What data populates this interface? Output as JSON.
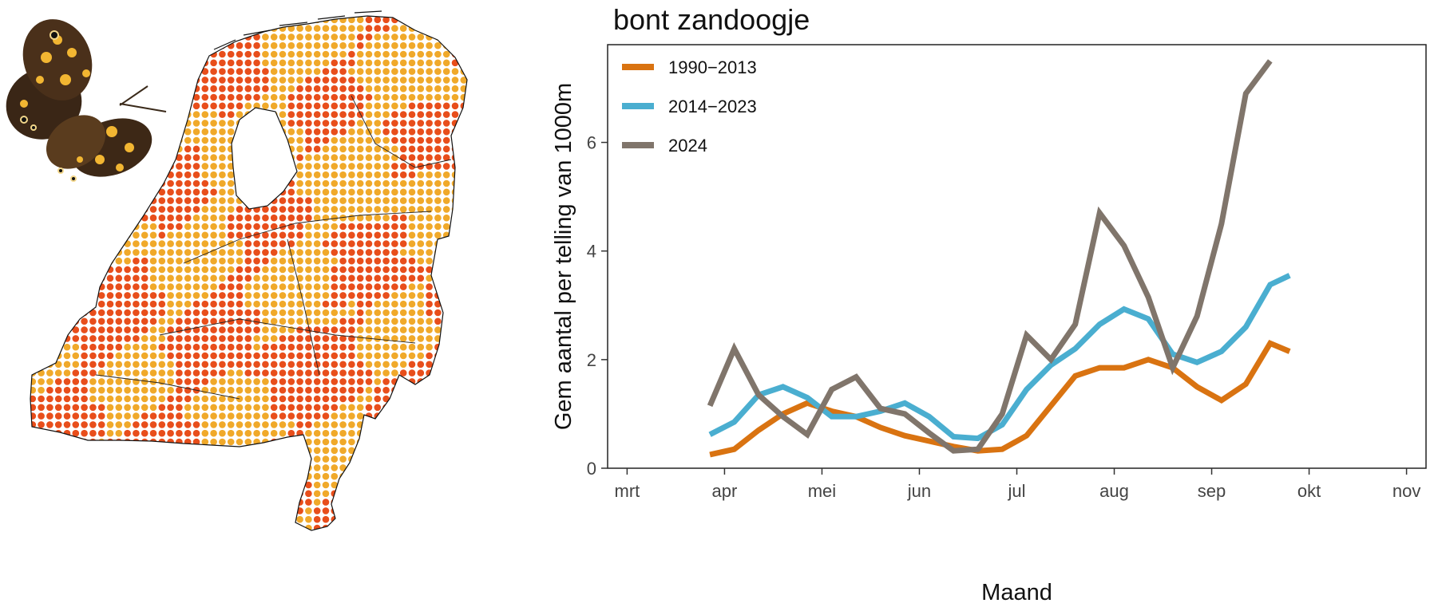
{
  "map": {
    "country": "Netherlands",
    "dot_colors": {
      "high": "#e84e1b",
      "low": "#f0a92a"
    }
  },
  "chart_data": {
    "type": "line",
    "title": "bont zandoogje",
    "xlabel": "Maand",
    "ylabel": "Gem aantal per telling van 1000m",
    "ylim": [
      0,
      7.8
    ],
    "yticks": [
      0,
      2,
      4,
      6
    ],
    "xlim": [
      0,
      8.4
    ],
    "month_ticks": [
      "mrt",
      "apr",
      "mei",
      "jun",
      "jul",
      "aug",
      "sep",
      "okt",
      "nov"
    ],
    "legend_position": "top-left",
    "series": [
      {
        "name": "1990−2013",
        "color": "#d97311",
        "x": [
          1.05,
          1.3,
          1.55,
          1.8,
          2.05,
          2.3,
          2.55,
          2.8,
          3.05,
          3.3,
          3.55,
          3.8,
          4.05,
          4.3,
          4.55,
          4.8,
          5.05,
          5.3,
          5.55,
          5.8,
          6.05,
          6.3,
          6.55,
          6.8,
          7.0
        ],
        "y": [
          0.25,
          0.35,
          0.7,
          1.0,
          1.2,
          1.05,
          0.95,
          0.75,
          0.6,
          0.5,
          0.4,
          0.32,
          0.35,
          0.6,
          1.15,
          1.7,
          1.85,
          1.85,
          2.0,
          1.85,
          1.5,
          1.25,
          1.55,
          2.3,
          2.15
        ]
      },
      {
        "name": "2014−2023",
        "color": "#4aaed0",
        "x": [
          1.05,
          1.3,
          1.55,
          1.8,
          2.05,
          2.3,
          2.55,
          2.8,
          3.05,
          3.3,
          3.55,
          3.8,
          4.05,
          4.3,
          4.55,
          4.8,
          5.05,
          5.3,
          5.55,
          5.8,
          6.05,
          6.3,
          6.55,
          6.8,
          7.0
        ],
        "y": [
          0.62,
          0.85,
          1.35,
          1.5,
          1.3,
          0.95,
          0.95,
          1.05,
          1.2,
          0.95,
          0.58,
          0.55,
          0.8,
          1.45,
          1.9,
          2.2,
          2.65,
          2.93,
          2.75,
          2.1,
          1.95,
          2.15,
          2.6,
          3.38,
          3.55
        ]
      },
      {
        "name": "2024",
        "color": "#80756b",
        "x": [
          1.05,
          1.3,
          1.55,
          1.8,
          2.05,
          2.3,
          2.55,
          2.8,
          3.05,
          3.3,
          3.55,
          3.8,
          4.05,
          4.3,
          4.55,
          4.8,
          5.05,
          5.3,
          5.55,
          5.8,
          6.05,
          6.3,
          6.55,
          6.8
        ],
        "y": [
          1.15,
          2.2,
          1.35,
          0.95,
          0.62,
          1.45,
          1.68,
          1.1,
          1.0,
          0.65,
          0.32,
          0.35,
          1.0,
          2.45,
          2.0,
          2.65,
          4.7,
          4.1,
          3.15,
          1.85,
          2.8,
          4.5,
          6.9,
          7.5
        ]
      }
    ]
  }
}
